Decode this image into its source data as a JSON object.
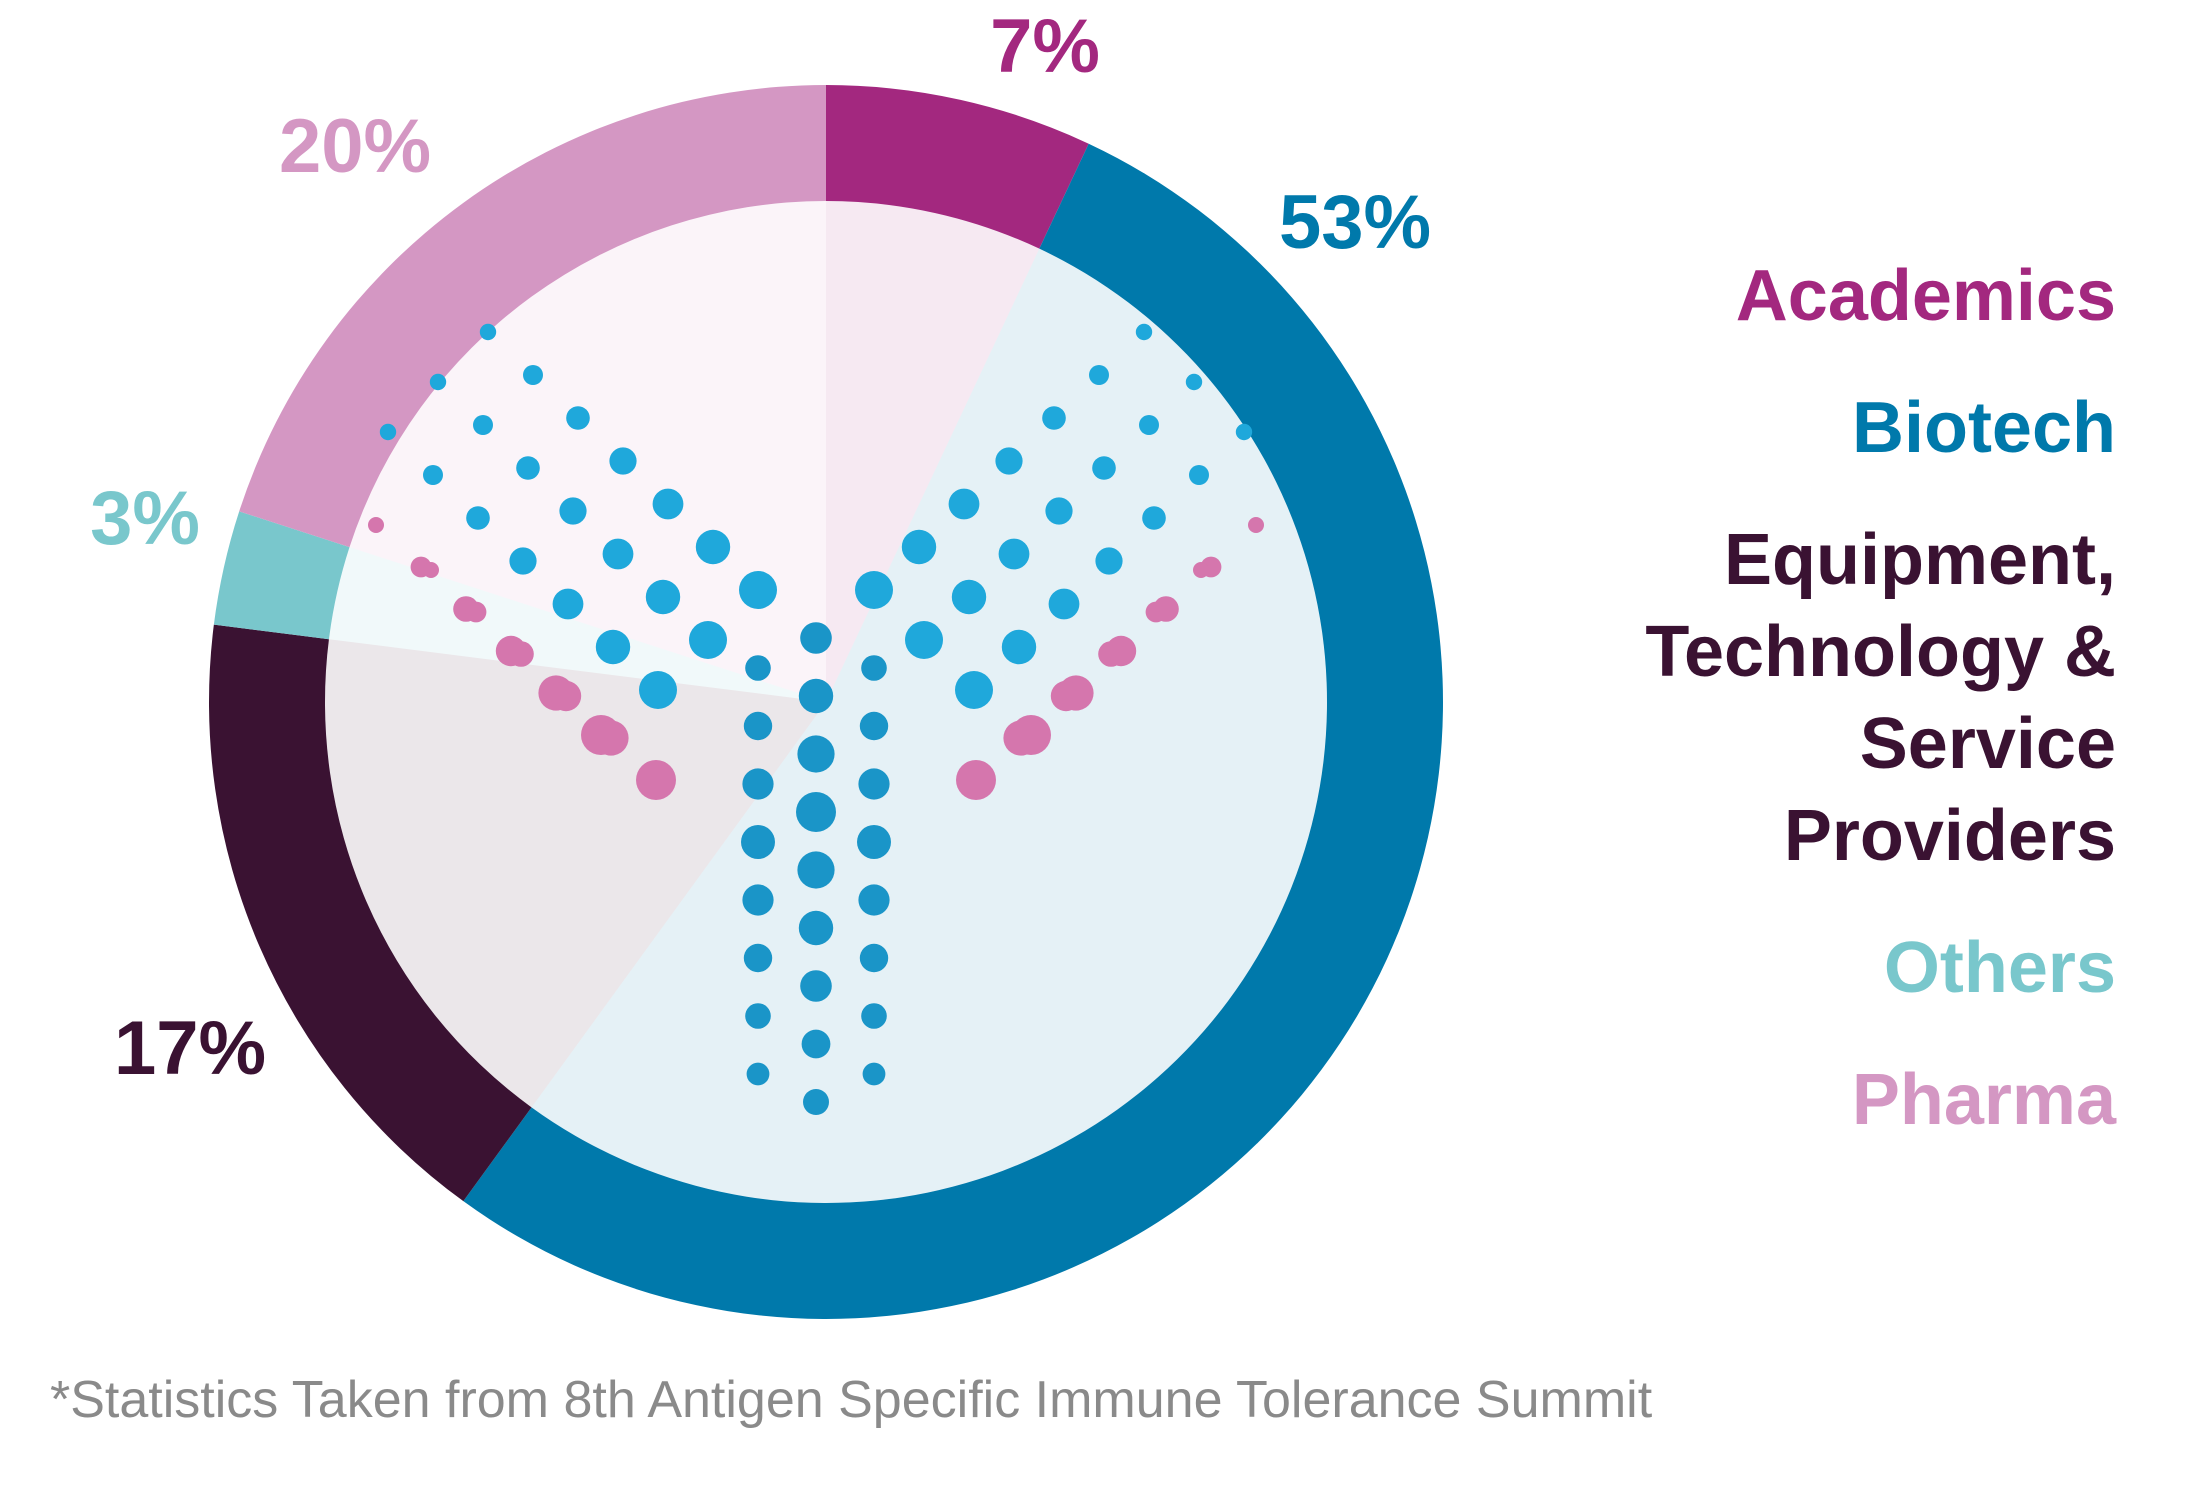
{
  "chart_data": {
    "type": "donut",
    "categories": [
      "Academics",
      "Biotech",
      "Equipment, Technology & Service Providers",
      "Others",
      "Pharma"
    ],
    "values": [
      7,
      53,
      17,
      3,
      20
    ],
    "value_labels": [
      "7%",
      "53%",
      "17%",
      "3%",
      "20%"
    ],
    "colors": [
      "#a3287f",
      "#0079ab",
      "#3a1232",
      "#79c7cc",
      "#d497c3"
    ],
    "footnote": "*Statistics Taken from 8th Antigen Specific Immune Tolerance Summit"
  }
}
